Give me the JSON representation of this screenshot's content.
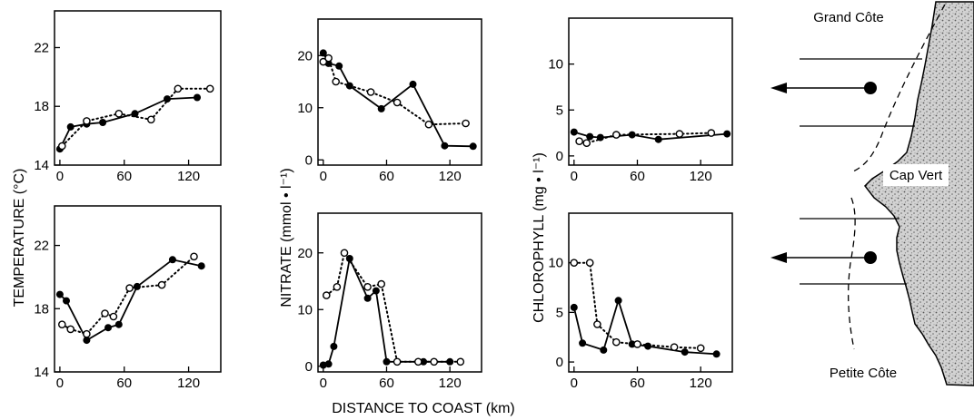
{
  "figure": {
    "ylabels": {
      "temperature": "TEMPERATURE (°C)",
      "nitrate": "NITRATE (mmol • l⁻¹)",
      "chlorophyll": "CHLOROPHYLL (mg • l⁻¹)"
    },
    "xlabel": "DISTANCE TO COAST (km)"
  },
  "map": {
    "labels": {
      "grand_cote": "Grand Côte",
      "cap_vert": "Cap Vert",
      "petite_cote": "Petite Côte"
    },
    "colors": {
      "land": "#cfcfcf",
      "stipple": "#6a6a6a"
    }
  },
  "chart_data": [
    {
      "type": "line",
      "panel": "temperature-north",
      "xlim": [
        -5,
        150
      ],
      "ylim": [
        14,
        24.5
      ],
      "xticks": [
        0,
        60,
        120
      ],
      "yticks": [
        14,
        18,
        22
      ],
      "series": [
        {
          "marker": "filled",
          "style": "solid",
          "x": [
            0,
            10,
            25,
            40,
            70,
            100,
            128
          ],
          "y": [
            15.1,
            16.6,
            16.8,
            16.9,
            17.5,
            18.5,
            18.6
          ]
        },
        {
          "marker": "open",
          "style": "dotted",
          "x": [
            2,
            25,
            55,
            85,
            110,
            140
          ],
          "y": [
            15.3,
            17.0,
            17.5,
            17.1,
            19.2,
            19.2
          ]
        }
      ]
    },
    {
      "type": "line",
      "panel": "nitrate-north",
      "xlim": [
        -5,
        150
      ],
      "ylim": [
        -1,
        27
      ],
      "xticks": [
        0,
        60,
        120
      ],
      "yticks": [
        0,
        10,
        20
      ],
      "series": [
        {
          "marker": "filled",
          "style": "solid",
          "x": [
            0,
            5,
            15,
            25,
            55,
            85,
            115,
            142
          ],
          "y": [
            20.5,
            18.5,
            18.0,
            14.2,
            9.8,
            14.5,
            2.7,
            2.6
          ]
        },
        {
          "marker": "open",
          "style": "dotted",
          "x": [
            0,
            5,
            12,
            45,
            70,
            100,
            135
          ],
          "y": [
            18.8,
            19.5,
            15.0,
            13.0,
            11.0,
            6.8,
            7.0
          ]
        }
      ]
    },
    {
      "type": "line",
      "panel": "chlorophyll-north",
      "xlim": [
        -5,
        150
      ],
      "ylim": [
        -1,
        15
      ],
      "xticks": [
        0,
        60,
        120
      ],
      "yticks": [
        0,
        5,
        10
      ],
      "series": [
        {
          "marker": "filled",
          "style": "solid",
          "x": [
            0,
            15,
            25,
            55,
            80,
            145
          ],
          "y": [
            2.6,
            2.1,
            2.0,
            2.3,
            1.8,
            2.4
          ]
        },
        {
          "marker": "open",
          "style": "dotted",
          "x": [
            5,
            12,
            40,
            100,
            130
          ],
          "y": [
            1.6,
            1.4,
            2.3,
            2.4,
            2.5
          ]
        }
      ]
    },
    {
      "type": "line",
      "panel": "temperature-south",
      "xlim": [
        -5,
        150
      ],
      "ylim": [
        14,
        24.5
      ],
      "xticks": [
        0,
        60,
        120
      ],
      "yticks": [
        14,
        18,
        22
      ],
      "series": [
        {
          "marker": "filled",
          "style": "solid",
          "x": [
            0,
            6,
            25,
            45,
            55,
            72,
            105,
            132
          ],
          "y": [
            18.9,
            18.5,
            16.0,
            16.8,
            17.0,
            19.4,
            21.1,
            20.7
          ]
        },
        {
          "marker": "open",
          "style": "dotted",
          "x": [
            2,
            10,
            25,
            42,
            50,
            65,
            95,
            125
          ],
          "y": [
            17.0,
            16.7,
            16.4,
            17.7,
            17.5,
            19.3,
            19.5,
            21.3
          ]
        }
      ]
    },
    {
      "type": "line",
      "panel": "nitrate-south",
      "xlim": [
        -5,
        150
      ],
      "ylim": [
        -1,
        27
      ],
      "xticks": [
        0,
        60,
        120
      ],
      "yticks": [
        0,
        10,
        20
      ],
      "series": [
        {
          "marker": "filled",
          "style": "solid",
          "x": [
            0,
            5,
            10,
            25,
            42,
            50,
            60,
            95,
            120
          ],
          "y": [
            0.2,
            0.4,
            3.5,
            19.0,
            12.0,
            13.3,
            0.8,
            0.8,
            0.8
          ]
        },
        {
          "marker": "open",
          "style": "dotted",
          "x": [
            3,
            13,
            20,
            42,
            55,
            70,
            90,
            105,
            130
          ],
          "y": [
            12.5,
            14.0,
            20.0,
            14.0,
            14.5,
            0.8,
            0.8,
            0.8,
            0.8
          ]
        }
      ]
    },
    {
      "type": "line",
      "panel": "chlorophyll-south",
      "xlim": [
        -5,
        150
      ],
      "ylim": [
        -1,
        15
      ],
      "xticks": [
        0,
        60,
        120
      ],
      "yticks": [
        0,
        5,
        10
      ],
      "series": [
        {
          "marker": "filled",
          "style": "solid",
          "x": [
            0,
            8,
            28,
            42,
            55,
            70,
            105,
            135
          ],
          "y": [
            5.5,
            1.9,
            1.2,
            6.2,
            1.8,
            1.6,
            1.0,
            0.8
          ]
        },
        {
          "marker": "open",
          "style": "dotted",
          "x": [
            0,
            15,
            22,
            40,
            60,
            95,
            120
          ],
          "y": [
            10.0,
            10.0,
            3.8,
            2.0,
            1.8,
            1.5,
            1.4
          ]
        }
      ]
    }
  ]
}
